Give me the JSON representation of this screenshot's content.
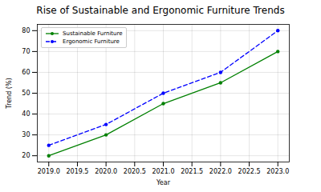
{
  "chart_data": {
    "type": "line",
    "title": "Rise of Sustainable and Ergonomic Furniture Trends",
    "x_label": "Year",
    "y_label": "Trend (%)",
    "x": [
      2019,
      2020,
      2021,
      2022,
      2023
    ],
    "series": [
      {
        "name": "Sustainable Furniture",
        "color": "green",
        "marker": "circle",
        "line_style": "solid",
        "values": [
          20,
          30,
          45,
          55,
          70
        ]
      },
      {
        "name": "Ergonomic Furniture",
        "color": "blue",
        "marker": "circle",
        "line_style": "dashed",
        "values": [
          25,
          35,
          50,
          60,
          80
        ]
      }
    ],
    "xlim": [
      2018.8,
      2023.2
    ],
    "xticks": [
      {
        "value": 2019,
        "label": "2019.0"
      },
      {
        "value": 2019.5,
        "label": "2019.5"
      },
      {
        "value": 2020,
        "label": "2020.0"
      },
      {
        "value": 2020.5,
        "label": "2020.5"
      },
      {
        "value": 2021,
        "label": "2021.0"
      },
      {
        "value": 2021.5,
        "label": "2021.5"
      },
      {
        "value": 2022,
        "label": "2022.0"
      },
      {
        "value": 2022.5,
        "label": "2022.5"
      },
      {
        "value": 2023,
        "label": "2023.0"
      }
    ],
    "ylim": [
      17,
      83
    ],
    "yticks": [
      20,
      30,
      40,
      50,
      60,
      70,
      80
    ],
    "grid": true,
    "legend": "upper left"
  }
}
